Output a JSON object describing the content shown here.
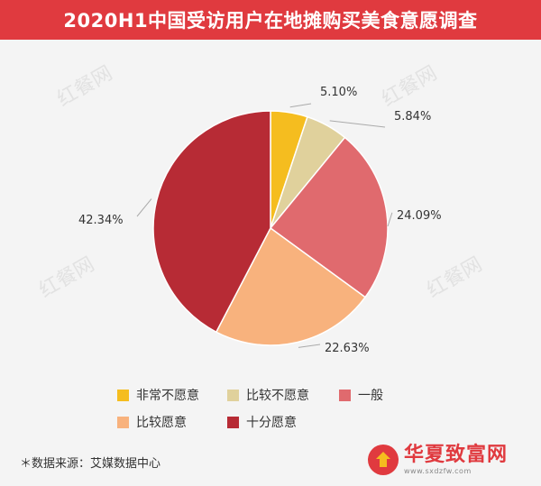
{
  "header": {
    "title": "2020H1中国受访用户在地摊购买美食意愿调查"
  },
  "chart_data": {
    "type": "pie",
    "categories": [
      "非常不愿意",
      "比较不愿意",
      "一般",
      "比较愿意",
      "十分愿意"
    ],
    "values": [
      5.1,
      5.84,
      24.09,
      22.63,
      42.34
    ],
    "value_labels": [
      "5.10%",
      "5.84%",
      "24.09%",
      "22.63%",
      "42.34%"
    ],
    "colors": [
      "#f5bd1f",
      "#e0d19c",
      "#e06a6e",
      "#f8b27d",
      "#b72b35"
    ],
    "legend_position": "bottom"
  },
  "footer": {
    "source": "＊数据来源：艾媒数据中心"
  },
  "brand": {
    "name": "华夏致富网",
    "url": "www.sxdzfw.com"
  },
  "watermark": {
    "text": "红餐网"
  }
}
